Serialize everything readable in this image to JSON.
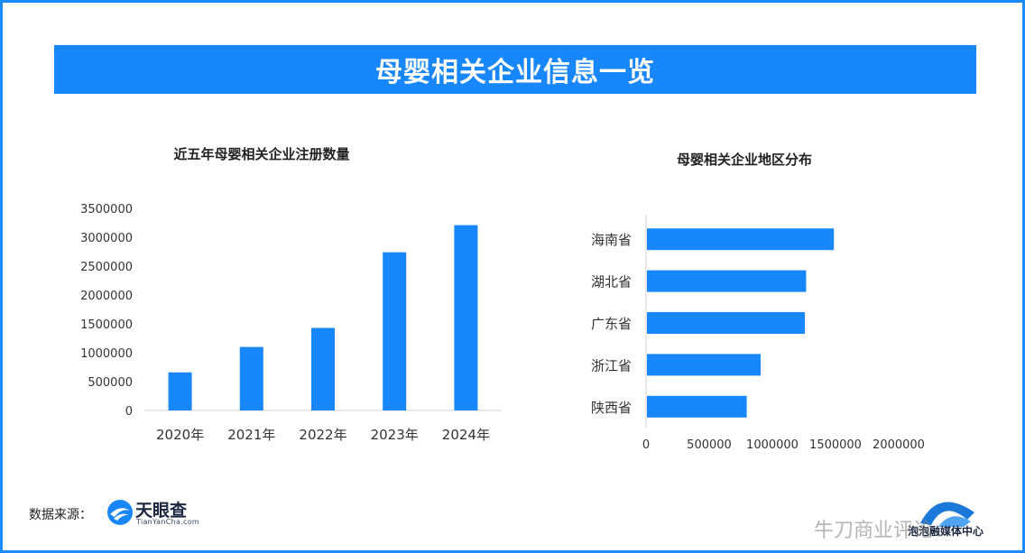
{
  "banner": {
    "title": "母婴相关企业信息一览"
  },
  "source": {
    "label": "数据来源：",
    "logo_name": "天眼查",
    "logo_sub": "TianYanCha.com"
  },
  "corner": {
    "caption": "泡泡融媒体中心"
  },
  "watermark": {
    "text": "牛刀商业评论"
  },
  "colors": {
    "bar": "#1787fb",
    "banner": "#1787fb",
    "frame": "#1a8cff"
  },
  "chart_data": [
    {
      "type": "bar",
      "title": "近五年母婴相关企业注册数量",
      "categories": [
        "2020年",
        "2021年",
        "2022年",
        "2023年",
        "2024年"
      ],
      "values": [
        660000,
        1100000,
        1430000,
        2740000,
        3210000
      ],
      "ylim": [
        0,
        3500000
      ],
      "yticks": [
        "0",
        "500000",
        "1000000",
        "1500000",
        "2000000",
        "2500000",
        "3000000",
        "3500000"
      ],
      "xlabel": "",
      "ylabel": "",
      "grid": false
    },
    {
      "type": "bar",
      "orientation": "horizontal",
      "title": "母婴相关企业地区分布",
      "categories": [
        "海南省",
        "湖北省",
        "广东省",
        "浙江省",
        "陕西省"
      ],
      "values": [
        1480000,
        1260000,
        1250000,
        900000,
        790000
      ],
      "xlim": [
        0,
        2000000
      ],
      "xticks": [
        "0",
        "500000",
        "1000000",
        "1500000",
        "2000000"
      ],
      "xlabel": "",
      "ylabel": "",
      "grid": false
    }
  ]
}
